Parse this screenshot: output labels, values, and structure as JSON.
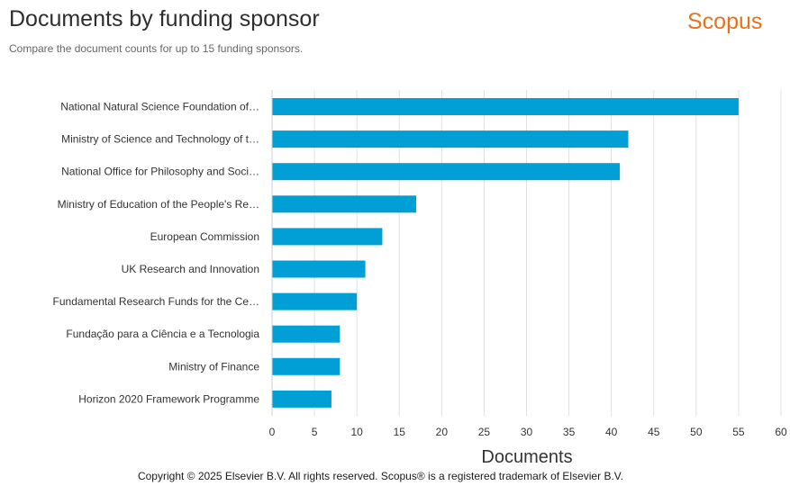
{
  "header": {
    "title": "Documents by funding sponsor",
    "subtitle": "Compare the document counts for up to 15 funding sponsors.",
    "logo_text": "Scopus"
  },
  "footer": {
    "copyright": "Copyright © 2025 Elsevier B.V. All rights reserved. Scopus® is a registered trademark of Elsevier B.V."
  },
  "colors": {
    "bar": "#009fd6",
    "logo": "#e9711c",
    "grid": "#e0e0e0"
  },
  "chart_data": {
    "type": "bar",
    "orientation": "horizontal",
    "title": "Documents by funding sponsor",
    "subtitle": "Compare the document counts for up to 15 funding sponsors.",
    "xlabel": "Documents",
    "ylabel": "",
    "xlim": [
      0,
      60
    ],
    "xticks": [
      0,
      5,
      10,
      15,
      20,
      25,
      30,
      35,
      40,
      45,
      50,
      55,
      60
    ],
    "grid": true,
    "legend": false,
    "categories": [
      "National Natural Science Foundation of…",
      "Ministry of Science and Technology of t…",
      "National Office for Philosophy and Soci…",
      "Ministry of Education of the People's Re…",
      "European Commission",
      "UK Research and Innovation",
      "Fundamental Research Funds for the Ce…",
      "Fundação para a Ciência e a Tecnologia",
      "Ministry of Finance",
      "Horizon 2020 Framework Programme"
    ],
    "values": [
      55,
      42,
      41,
      17,
      13,
      11,
      10,
      8,
      8,
      7
    ]
  }
}
